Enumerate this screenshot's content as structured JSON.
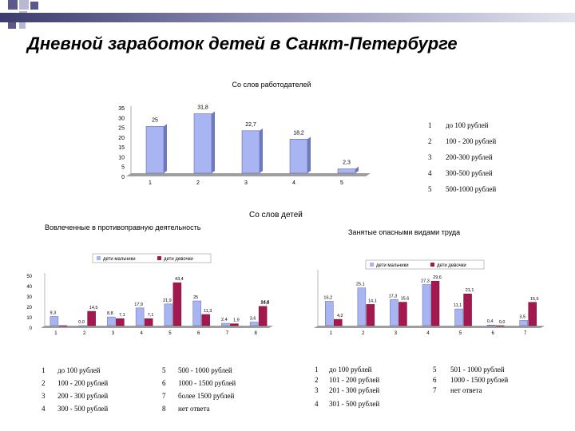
{
  "title": "Дневной заработок детей в Санкт-Петербурге",
  "colors": {
    "blue": "#a9b5f2",
    "maroon": "#a3184e",
    "deco": "#5a5a8a"
  },
  "section_children": "Со слов детей",
  "chart_data": [
    {
      "type": "bar",
      "title": "Со слов работодателей",
      "categories": [
        "1",
        "2",
        "3",
        "4",
        "5"
      ],
      "values": [
        25,
        31.8,
        22.7,
        18.2,
        2.3
      ],
      "value_labels": [
        "25",
        "31,8",
        "22,7",
        "18,2",
        "2,3"
      ],
      "yticks": [
        "35",
        "30",
        "25",
        "20",
        "15",
        "10",
        "5",
        "0"
      ],
      "ylim": [
        0,
        35
      ],
      "legend": [
        {
          "num": "1",
          "text": "до 100 рублей"
        },
        {
          "num": "2",
          "text": "100 - 200 рублей"
        },
        {
          "num": "3",
          "text": "200-300 рублей"
        },
        {
          "num": "4",
          "text": "300-500 рублей"
        },
        {
          "num": "5",
          "text": "500-1000 рублей"
        }
      ]
    },
    {
      "type": "bar",
      "title": "Вовлеченные в противоправную деятельность",
      "categories": [
        "1",
        "2",
        "3",
        "4",
        "5",
        "6",
        "7",
        "8"
      ],
      "series_legend": [
        "дети мальчики",
        "дети девочки"
      ],
      "series": [
        {
          "values": [
            9.3,
            0,
            8.8,
            17.9,
            21.9,
            25,
            2.4,
            3.6
          ],
          "labels": [
            "9,3",
            "0,0",
            "8,8",
            "17,9",
            "21,9",
            "25",
            "2,4",
            "3,6"
          ]
        },
        {
          "values": [
            0,
            14.5,
            7.1,
            7.1,
            43.4,
            11.3,
            1.9,
            19.5
          ],
          "labels": [
            "",
            "14,5",
            "7,1",
            "7,1",
            "43,4",
            "11,3",
            "1,9",
            "19,5"
          ]
        }
      ],
      "extra_labels": [
        "14,3"
      ],
      "yticks": [
        "50",
        "40",
        "30",
        "20",
        "10",
        "0"
      ],
      "ylim": [
        0,
        50
      ],
      "legend": [
        {
          "num": "1",
          "text": "до 100 рублей"
        },
        {
          "num": "2",
          "text": "100 - 200 рублей"
        },
        {
          "num": "3",
          "text": "200 - 300 рублей"
        },
        {
          "num": "4",
          "text": "300 - 500 рублей"
        },
        {
          "num": "5",
          "text": "500 - 1000 рублей"
        },
        {
          "num": "6",
          "text": "1000 - 1500 рублей"
        },
        {
          "num": "7",
          "text": "более 1500 рублей"
        },
        {
          "num": "8",
          "text": "нет ответа"
        }
      ]
    },
    {
      "type": "bar",
      "title": "Занятые опасными видами труда",
      "categories": [
        "1",
        "2",
        "3",
        "4",
        "5",
        "6",
        "7"
      ],
      "series_legend": [
        "дети мальчики",
        "дети девочки"
      ],
      "series": [
        {
          "values": [
            16.2,
            25.1,
            17.3,
            27.3,
            11.1,
            0.4,
            3.5
          ],
          "labels": [
            "16,2",
            "25,1",
            "17,3",
            "27,3",
            "11,1",
            "0,4",
            "3,5"
          ]
        },
        {
          "values": [
            4.2,
            14.1,
            15.6,
            29.6,
            21.1,
            0,
            15.5
          ],
          "labels": [
            "4,2",
            "14,1",
            "15,6",
            "29,6",
            "21,1",
            "0,0",
            "15,5"
          ]
        }
      ],
      "ylim": [
        0,
        35
      ],
      "legend": [
        {
          "num": "1",
          "text": "до 100 рублей"
        },
        {
          "num": "2",
          "text": "101 - 200 рублей"
        },
        {
          "num": "3",
          "text": "201 - 300 рублей"
        },
        {
          "num": "4",
          "text": "301 - 500 рублей"
        },
        {
          "num": "5",
          "text": "501 - 1000 рублей"
        },
        {
          "num": "6",
          "text": "1000 - 1500 рублей"
        },
        {
          "num": "7",
          "text": "нет ответа"
        }
      ]
    }
  ]
}
